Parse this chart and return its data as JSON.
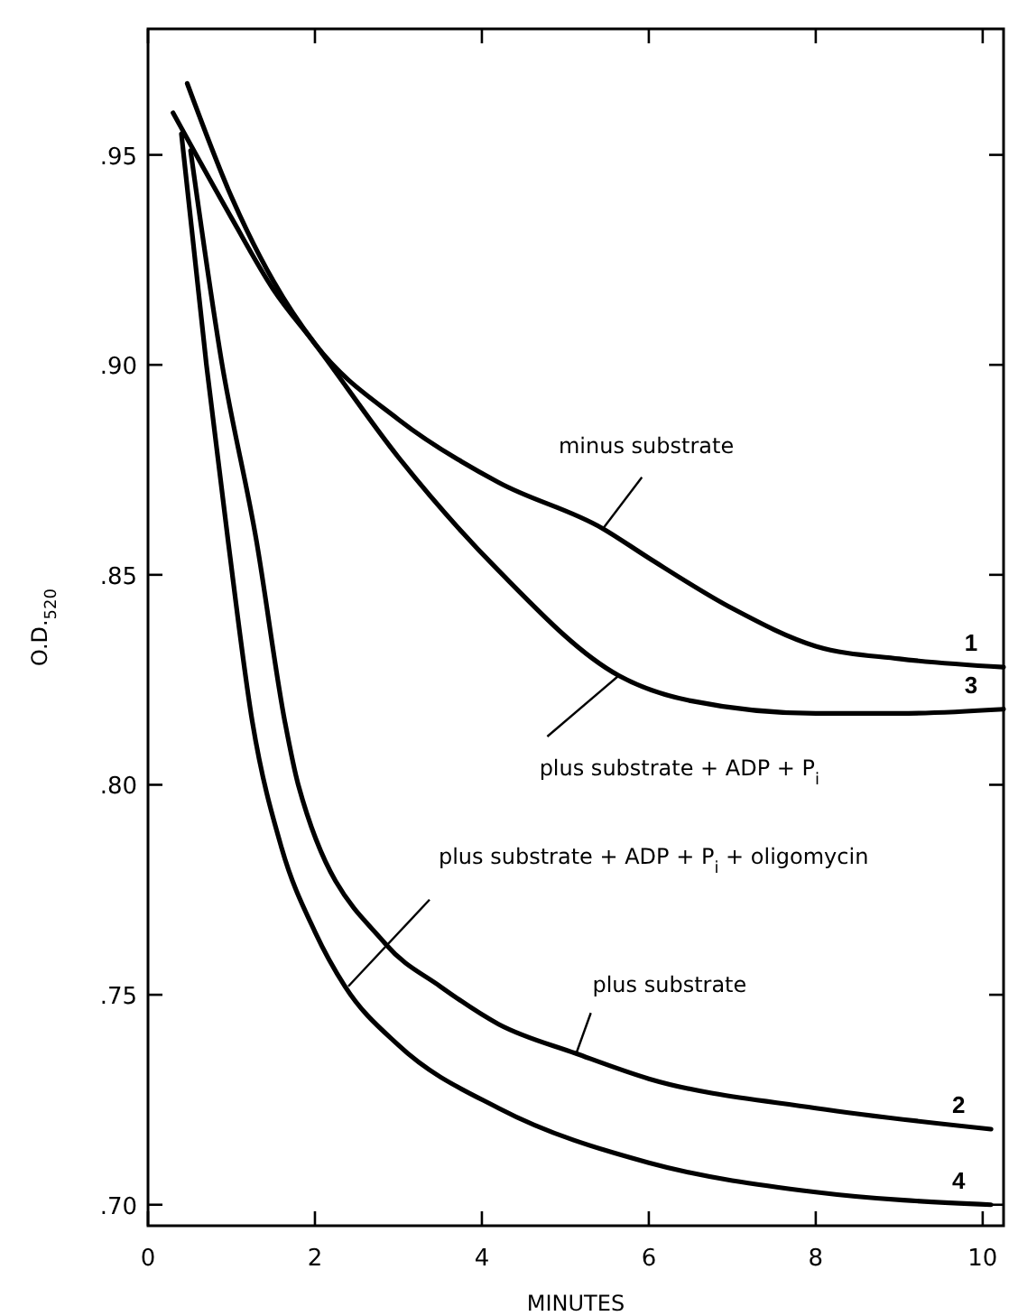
{
  "chart_data": {
    "type": "line",
    "xlabel": "MINUTES",
    "ylabel": "O.D.$_{520}$",
    "xlim": [
      0,
      10.25
    ],
    "ylim": [
      0.695,
      0.98
    ],
    "xticks": [
      0,
      2,
      4,
      6,
      8,
      10
    ],
    "yticks": [
      {
        "value": 0.7,
        "label": ".70"
      },
      {
        "value": 0.75,
        "label": ".75"
      },
      {
        "value": 0.8,
        "label": ".80"
      },
      {
        "value": 0.85,
        "label": ".85"
      },
      {
        "value": 0.9,
        "label": ".90"
      },
      {
        "value": 0.95,
        "label": ".95"
      }
    ],
    "grid": false,
    "marker": "none",
    "line_style": "solid",
    "series": [
      {
        "name": "1",
        "color": "#000000",
        "x": [
          0.47,
          1,
          1.5,
          2,
          3,
          4.2,
          5.45,
          6,
          7,
          8,
          9,
          10.25
        ],
        "values": [
          0.967,
          0.94,
          0.92,
          0.905,
          0.887,
          0.872,
          0.861,
          0.854,
          0.842,
          0.833,
          0.83,
          0.828
        ]
      },
      {
        "name": "2",
        "color": "#000000",
        "x": [
          0.51,
          0.88,
          1.3,
          1.64,
          1.8,
          2.85,
          3.5,
          4.2,
          5.13,
          6,
          8,
          10.1
        ],
        "values": [
          0.951,
          0.901,
          0.858,
          0.815,
          0.8,
          0.762,
          0.752,
          0.743,
          0.736,
          0.73,
          0.723,
          0.718
        ]
      },
      {
        "name": "3",
        "color": "#000000",
        "x": [
          0.3,
          1,
          1.5,
          2,
          3,
          4.2,
          5.64,
          6.5,
          8,
          9,
          10.25
        ],
        "values": [
          0.96,
          0.935,
          0.918,
          0.905,
          0.878,
          0.851,
          0.826,
          0.82,
          0.817,
          0.817,
          0.818
        ]
      },
      {
        "name": "4",
        "color": "#000000",
        "x": [
          0.4,
          0.7,
          0.96,
          1.25,
          1.6,
          2,
          2.36,
          3,
          4.2,
          6,
          8,
          10.1
        ],
        "values": [
          0.955,
          0.9,
          0.858,
          0.815,
          0.785,
          0.765,
          0.752,
          0.738,
          0.723,
          0.71,
          0.703,
          0.7
        ]
      }
    ],
    "annotations": [
      {
        "text": "minus substrate",
        "x": 5.45,
        "y": 0.861
      },
      {
        "text": "plus substrate + ADP + P$_{i}$",
        "x": 5.64,
        "y": 0.826
      },
      {
        "text": "plus substrate + ADP + P$_{i}$ + oligomycin",
        "x": 2.4,
        "y": 0.752
      },
      {
        "text": "plus substrate",
        "x": 5.13,
        "y": 0.736
      }
    ]
  }
}
